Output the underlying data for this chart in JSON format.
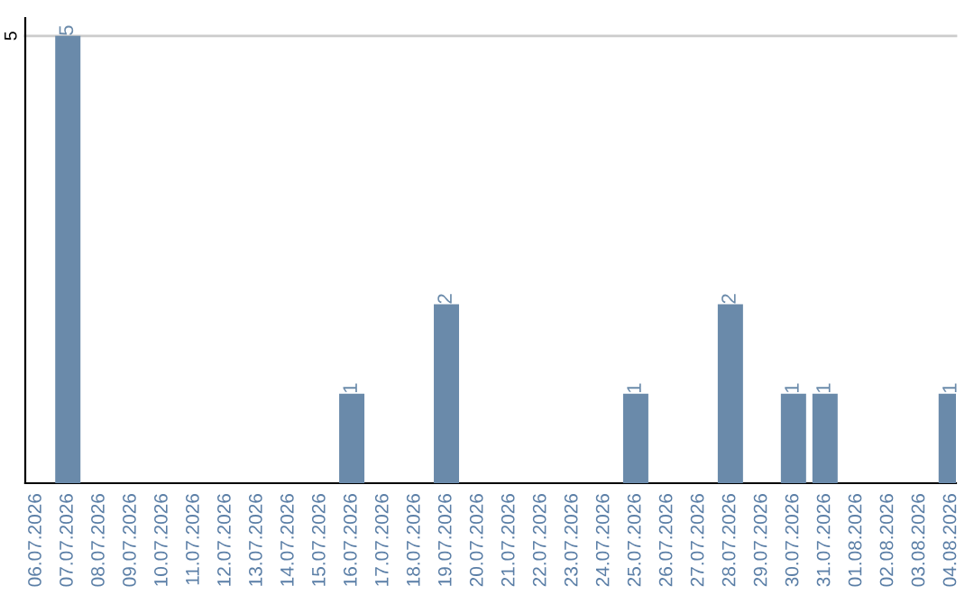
{
  "chart_data": {
    "type": "bar",
    "categories": [
      "06.07.2026",
      "07.07.2026",
      "08.07.2026",
      "09.07.2026",
      "10.07.2026",
      "11.07.2026",
      "12.07.2026",
      "13.07.2026",
      "14.07.2026",
      "15.07.2026",
      "16.07.2026",
      "17.07.2026",
      "18.07.2026",
      "19.07.2026",
      "20.07.2026",
      "21.07.2026",
      "22.07.2026",
      "23.07.2026",
      "24.07.2026",
      "25.07.2026",
      "26.07.2026",
      "27.07.2026",
      "28.07.2026",
      "29.07.2026",
      "30.07.2026",
      "31.07.2026",
      "01.08.2026",
      "02.08.2026",
      "03.08.2026",
      "04.08.2026"
    ],
    "values": [
      0,
      5,
      0,
      0,
      0,
      0,
      0,
      0,
      0,
      0,
      1,
      0,
      0,
      2,
      0,
      0,
      0,
      0,
      0,
      1,
      0,
      0,
      2,
      0,
      1,
      1,
      0,
      0,
      0,
      1
    ],
    "value_labels": [
      null,
      "5",
      null,
      null,
      null,
      null,
      null,
      null,
      null,
      null,
      "1",
      null,
      null,
      "2",
      null,
      null,
      null,
      null,
      null,
      "1",
      null,
      null,
      "2",
      null,
      "1",
      "1",
      null,
      null,
      null,
      "1"
    ],
    "color": "#6a8aaa",
    "ylim": [
      0,
      5.2
    ],
    "yticks": [
      5
    ],
    "grid": "y",
    "legend": false
  }
}
